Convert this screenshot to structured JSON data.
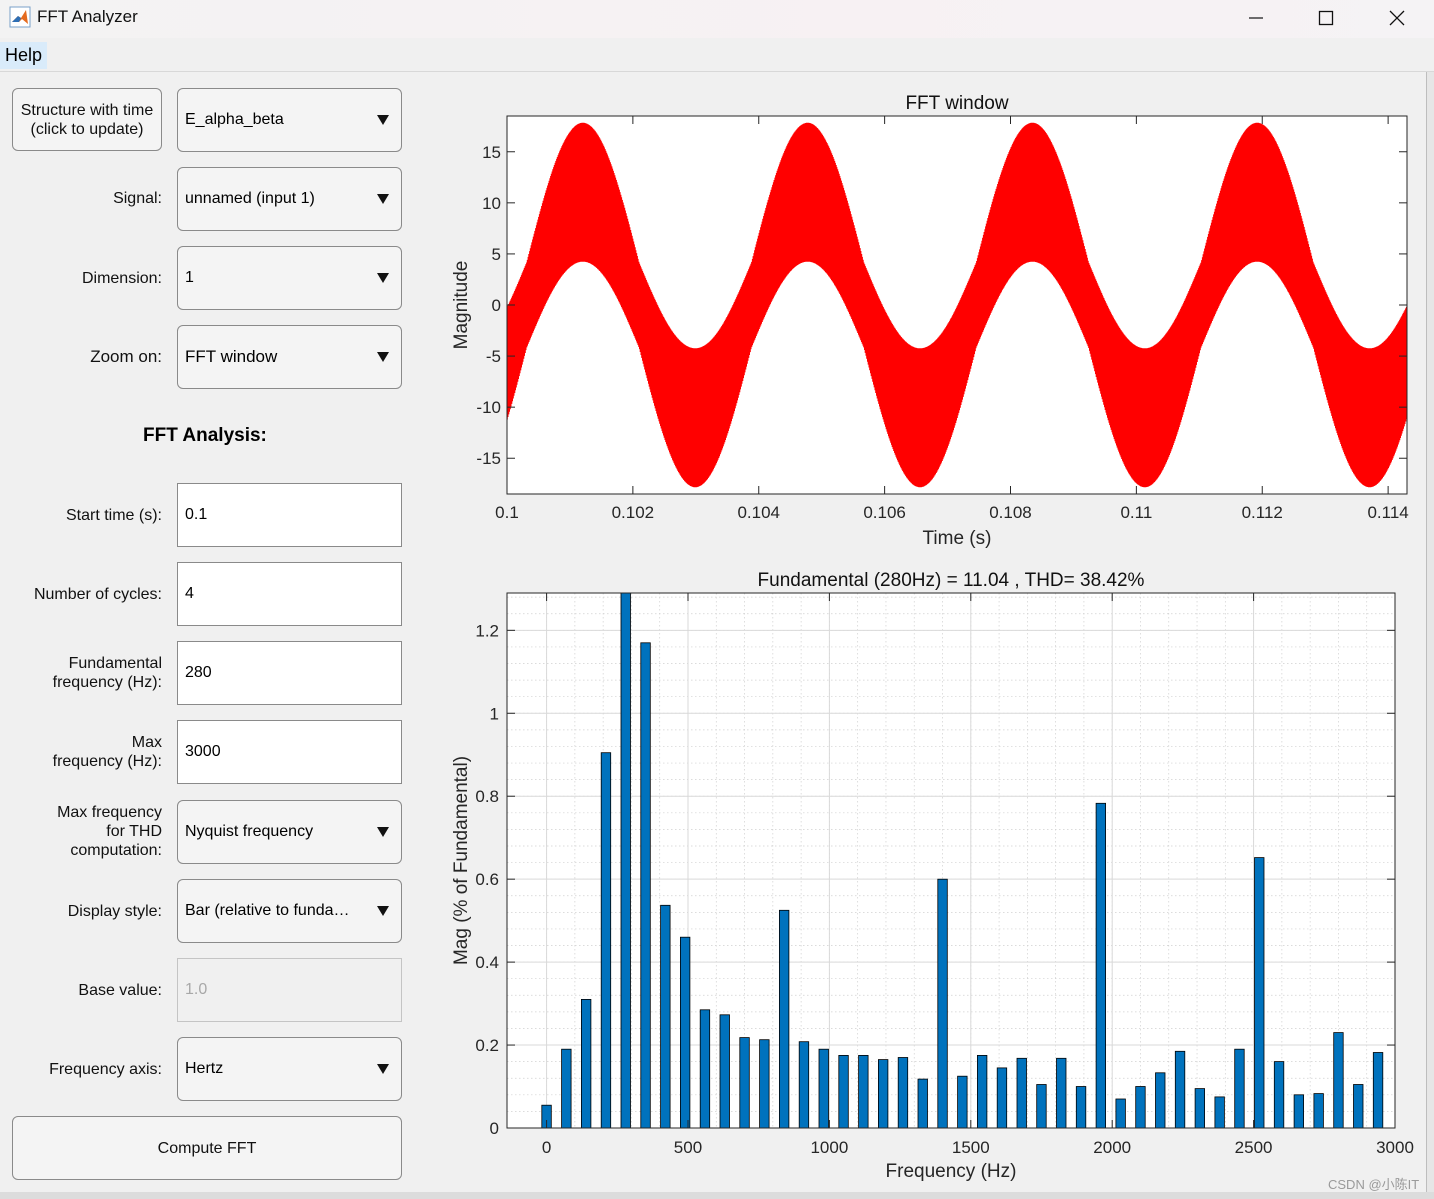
{
  "window": {
    "title": "FFT Analyzer",
    "icon": "matlab-icon"
  },
  "menu": {
    "help": "Help"
  },
  "controls": {
    "structure_button": {
      "line1": "Structure with time",
      "line2": "(click to update)"
    },
    "structure_value": "E_alpha_beta",
    "signal": {
      "label": "Signal:",
      "value": "unnamed (input 1)"
    },
    "dimension": {
      "label": "Dimension:",
      "value": "1"
    },
    "zoom": {
      "label": "Zoom on:",
      "value": "FFT window"
    },
    "section_title": "FFT Analysis:",
    "start_time": {
      "label": "Start time (s):",
      "value": "0.1"
    },
    "cycles": {
      "label": "Number of cycles:",
      "value": "4"
    },
    "fund_freq": {
      "label1": "Fundamental",
      "label2": "frequency (Hz):",
      "value": "280"
    },
    "max_freq": {
      "label1": "Max",
      "label2": "frequency (Hz):",
      "value": "3000"
    },
    "thd_freq": {
      "label1": "Max frequency",
      "label2": "for THD",
      "label3": "computation:",
      "value": "Nyquist frequency"
    },
    "display_style": {
      "label": "Display style:",
      "value": "Bar (relative to funda…"
    },
    "base_value": {
      "label": "Base value:",
      "value": "1.0"
    },
    "freq_axis": {
      "label": "Frequency axis:",
      "value": "Hertz"
    },
    "compute_button": "Compute FFT"
  },
  "watermark": "CSDN @小陈IT",
  "colors": {
    "signal": "#ff0000",
    "bar": "#0072bd"
  },
  "chart_data": [
    {
      "type": "line",
      "title": "FFT window",
      "xlabel": "Time (s)",
      "ylabel": "Magnitude",
      "xlim": [
        0.1,
        0.1143
      ],
      "ylim": [
        -18.5,
        18.5
      ],
      "xticks": [
        "0.1",
        "0.102",
        "0.104",
        "0.106",
        "0.108",
        "0.11",
        "0.112",
        "0.114"
      ],
      "yticks": [
        "15",
        "10",
        "5",
        "0",
        "-5",
        "-10",
        "-15"
      ],
      "series": [
        {
          "fundamental_hz": 280,
          "amplitude": 11.04,
          "envelope_min": -18,
          "envelope_max": 18
        }
      ],
      "grid": false
    },
    {
      "type": "bar",
      "title": "Fundamental (280Hz) = 11.04 , THD= 38.42%",
      "xlabel": "Frequency (Hz)",
      "ylabel": "Mag (% of Fundamental)",
      "xlim": [
        -140,
        3000
      ],
      "ylim": [
        0,
        1.29
      ],
      "xticks": [
        "0",
        "500",
        "1000",
        "1500",
        "2000",
        "2500",
        "3000"
      ],
      "yticks": [
        "0",
        "0.2",
        "0.4",
        "0.6",
        "0.8",
        "1",
        "1.2"
      ],
      "x": [
        0,
        70,
        140,
        210,
        280,
        350,
        420,
        490,
        560,
        630,
        700,
        770,
        840,
        910,
        980,
        1050,
        1120,
        1190,
        1260,
        1330,
        1400,
        1470,
        1540,
        1610,
        1680,
        1750,
        1820,
        1890,
        1960,
        2030,
        2100,
        2170,
        2240,
        2310,
        2380,
        2450,
        2520,
        2590,
        2660,
        2730,
        2800,
        2870,
        2940
      ],
      "values": [
        0.055,
        0.19,
        0.31,
        0.905,
        1.29,
        1.17,
        0.537,
        0.46,
        0.285,
        0.273,
        0.218,
        0.213,
        0.525,
        0.208,
        0.19,
        0.175,
        0.175,
        0.165,
        0.17,
        0.118,
        0.6,
        0.125,
        0.175,
        0.145,
        0.168,
        0.105,
        0.168,
        0.1,
        0.783,
        0.07,
        0.1,
        0.133,
        0.185,
        0.095,
        0.075,
        0.19,
        0.652,
        0.16,
        0.08,
        0.083,
        0.23,
        0.105,
        0.182
      ],
      "grid": true
    }
  ]
}
